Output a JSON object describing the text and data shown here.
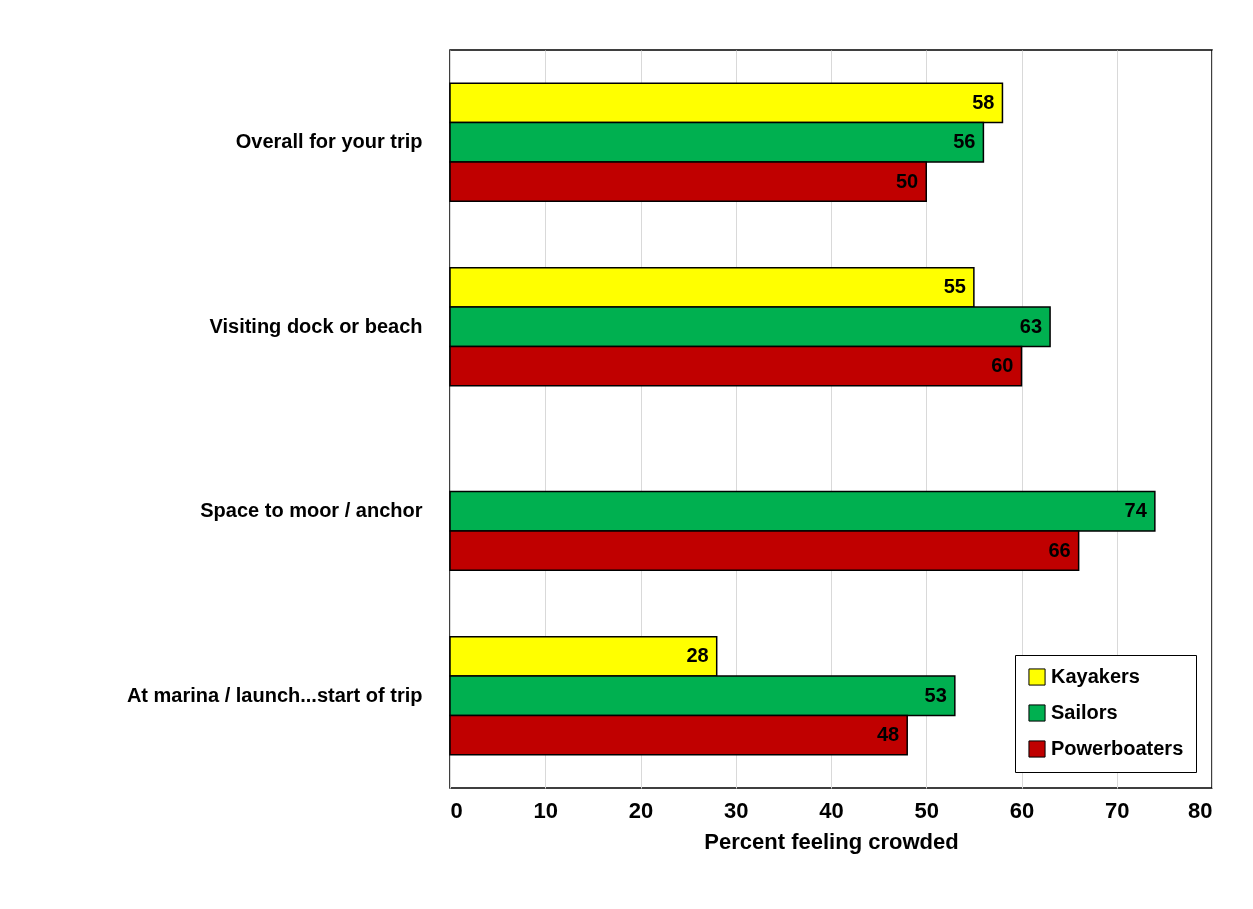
{
  "chart_data": {
    "type": "bar",
    "orientation": "horizontal",
    "xlabel": "Percent feeling crowded",
    "categories": [
      "Overall for your trip",
      "Visiting dock or beach",
      "Space to moor / anchor",
      "At marina / launch...start of trip"
    ],
    "series": [
      {
        "name": "Kayakers",
        "color": "#ffff00",
        "values": [
          58,
          55,
          null,
          28
        ]
      },
      {
        "name": "Sailors",
        "color": "#00b050",
        "values": [
          56,
          63,
          74,
          53
        ]
      },
      {
        "name": "Powerboaters",
        "color": "#c00000",
        "values": [
          50,
          60,
          66,
          48
        ]
      }
    ],
    "xlim": [
      0,
      80
    ],
    "xticks": [
      0,
      10,
      20,
      30,
      40,
      50,
      60,
      70,
      80
    ],
    "grid": "x",
    "legend": "bottom right",
    "data_labels": true
  }
}
